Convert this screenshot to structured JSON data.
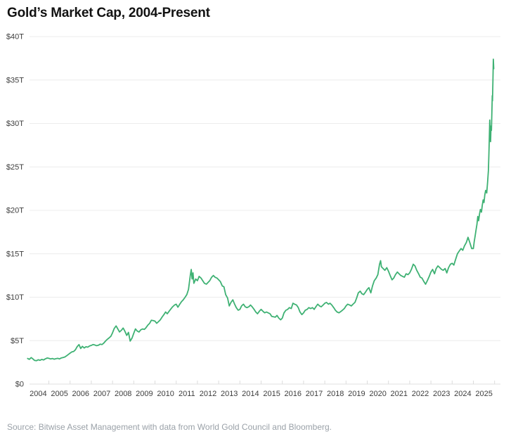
{
  "header": {
    "title": "Gold’s Market Cap, 2004-Present"
  },
  "footer": {
    "source": "Source: Bitwise Asset Management with data from World Gold Council and Bloomberg."
  },
  "chart_data": {
    "type": "line",
    "title": "Gold’s Market Cap, 2004-Present",
    "xlabel": "",
    "ylabel": "",
    "xlim": [
      2004,
      2026
    ],
    "ylim": [
      0,
      40
    ],
    "grid": "horizontal",
    "legend": "none",
    "line_color": "#3eb173",
    "grid_color": "#ececec",
    "axis_color": "#e2e2e2",
    "label_color": "#3d3d3d",
    "y_ticks": [
      0,
      5,
      10,
      15,
      20,
      25,
      30,
      35,
      40
    ],
    "y_tick_labels": [
      "$0",
      "$5T",
      "$10T",
      "$15T",
      "$20T",
      "$25T",
      "$30T",
      "$35T",
      "$40T"
    ],
    "x_tick_labels": [
      "2004",
      "2005",
      "2006",
      "2007",
      "2008",
      "2009",
      "2010",
      "2011",
      "2012",
      "2013",
      "2014",
      "2015",
      "2016",
      "2017",
      "2018",
      "2019",
      "2020",
      "2021",
      "2022",
      "2023",
      "2024",
      "2025"
    ],
    "series": [
      {
        "name": "Gold market cap (trillions USD)",
        "points": [
          [
            2004.0,
            2.95
          ],
          [
            2004.08,
            2.85
          ],
          [
            2004.17,
            3.05
          ],
          [
            2004.25,
            2.9
          ],
          [
            2004.33,
            2.72
          ],
          [
            2004.42,
            2.7
          ],
          [
            2004.5,
            2.8
          ],
          [
            2004.58,
            2.74
          ],
          [
            2004.67,
            2.84
          ],
          [
            2004.75,
            2.78
          ],
          [
            2004.83,
            2.9
          ],
          [
            2004.92,
            3.0
          ],
          [
            2005.0,
            2.96
          ],
          [
            2005.08,
            2.9
          ],
          [
            2005.17,
            2.95
          ],
          [
            2005.25,
            2.87
          ],
          [
            2005.33,
            2.92
          ],
          [
            2005.42,
            2.96
          ],
          [
            2005.5,
            2.9
          ],
          [
            2005.58,
            3.0
          ],
          [
            2005.67,
            3.06
          ],
          [
            2005.75,
            3.12
          ],
          [
            2005.83,
            3.25
          ],
          [
            2005.92,
            3.42
          ],
          [
            2006.0,
            3.56
          ],
          [
            2006.08,
            3.7
          ],
          [
            2006.17,
            3.76
          ],
          [
            2006.25,
            3.95
          ],
          [
            2006.33,
            4.3
          ],
          [
            2006.42,
            4.55
          ],
          [
            2006.5,
            4.1
          ],
          [
            2006.58,
            4.35
          ],
          [
            2006.67,
            4.15
          ],
          [
            2006.75,
            4.3
          ],
          [
            2006.83,
            4.25
          ],
          [
            2006.92,
            4.4
          ],
          [
            2007.0,
            4.45
          ],
          [
            2007.08,
            4.55
          ],
          [
            2007.17,
            4.5
          ],
          [
            2007.25,
            4.42
          ],
          [
            2007.33,
            4.47
          ],
          [
            2007.42,
            4.6
          ],
          [
            2007.5,
            4.55
          ],
          [
            2007.58,
            4.7
          ],
          [
            2007.67,
            4.95
          ],
          [
            2007.75,
            5.15
          ],
          [
            2007.83,
            5.3
          ],
          [
            2007.92,
            5.5
          ],
          [
            2008.0,
            5.9
          ],
          [
            2008.08,
            6.4
          ],
          [
            2008.17,
            6.7
          ],
          [
            2008.25,
            6.35
          ],
          [
            2008.33,
            6.0
          ],
          [
            2008.42,
            6.2
          ],
          [
            2008.5,
            6.45
          ],
          [
            2008.58,
            6.1
          ],
          [
            2008.67,
            5.6
          ],
          [
            2008.75,
            5.95
          ],
          [
            2008.83,
            4.95
          ],
          [
            2008.92,
            5.3
          ],
          [
            2009.0,
            5.85
          ],
          [
            2009.08,
            6.35
          ],
          [
            2009.17,
            6.1
          ],
          [
            2009.25,
            6.0
          ],
          [
            2009.33,
            6.25
          ],
          [
            2009.42,
            6.35
          ],
          [
            2009.5,
            6.3
          ],
          [
            2009.58,
            6.5
          ],
          [
            2009.67,
            6.8
          ],
          [
            2009.75,
            7.0
          ],
          [
            2009.83,
            7.35
          ],
          [
            2009.92,
            7.3
          ],
          [
            2010.0,
            7.25
          ],
          [
            2010.08,
            7.0
          ],
          [
            2010.17,
            7.2
          ],
          [
            2010.25,
            7.4
          ],
          [
            2010.33,
            7.7
          ],
          [
            2010.42,
            8.0
          ],
          [
            2010.5,
            8.3
          ],
          [
            2010.58,
            8.1
          ],
          [
            2010.67,
            8.4
          ],
          [
            2010.75,
            8.65
          ],
          [
            2010.83,
            8.9
          ],
          [
            2010.92,
            9.1
          ],
          [
            2011.0,
            9.2
          ],
          [
            2011.08,
            8.85
          ],
          [
            2011.17,
            9.2
          ],
          [
            2011.25,
            9.5
          ],
          [
            2011.33,
            9.7
          ],
          [
            2011.42,
            10.0
          ],
          [
            2011.5,
            10.3
          ],
          [
            2011.58,
            10.9
          ],
          [
            2011.67,
            12.6
          ],
          [
            2011.71,
            13.2
          ],
          [
            2011.75,
            12.1
          ],
          [
            2011.79,
            12.8
          ],
          [
            2011.83,
            11.6
          ],
          [
            2011.92,
            12.1
          ],
          [
            2012.0,
            11.9
          ],
          [
            2012.08,
            12.4
          ],
          [
            2012.17,
            12.2
          ],
          [
            2012.25,
            11.9
          ],
          [
            2012.33,
            11.6
          ],
          [
            2012.42,
            11.5
          ],
          [
            2012.5,
            11.7
          ],
          [
            2012.58,
            11.9
          ],
          [
            2012.67,
            12.3
          ],
          [
            2012.75,
            12.5
          ],
          [
            2012.83,
            12.3
          ],
          [
            2012.92,
            12.2
          ],
          [
            2013.0,
            12.0
          ],
          [
            2013.08,
            11.8
          ],
          [
            2013.17,
            11.3
          ],
          [
            2013.25,
            11.2
          ],
          [
            2013.33,
            10.3
          ],
          [
            2013.42,
            9.9
          ],
          [
            2013.5,
            9.0
          ],
          [
            2013.58,
            9.4
          ],
          [
            2013.67,
            9.7
          ],
          [
            2013.75,
            9.2
          ],
          [
            2013.83,
            8.8
          ],
          [
            2013.92,
            8.5
          ],
          [
            2014.0,
            8.6
          ],
          [
            2014.08,
            9.0
          ],
          [
            2014.17,
            9.2
          ],
          [
            2014.25,
            8.9
          ],
          [
            2014.33,
            8.8
          ],
          [
            2014.42,
            8.9
          ],
          [
            2014.5,
            9.1
          ],
          [
            2014.58,
            8.9
          ],
          [
            2014.67,
            8.6
          ],
          [
            2014.75,
            8.3
          ],
          [
            2014.83,
            8.1
          ],
          [
            2014.92,
            8.4
          ],
          [
            2015.0,
            8.6
          ],
          [
            2015.08,
            8.4
          ],
          [
            2015.17,
            8.2
          ],
          [
            2015.25,
            8.3
          ],
          [
            2015.33,
            8.2
          ],
          [
            2015.42,
            8.1
          ],
          [
            2015.5,
            7.8
          ],
          [
            2015.58,
            7.75
          ],
          [
            2015.67,
            7.7
          ],
          [
            2015.75,
            7.9
          ],
          [
            2015.83,
            7.6
          ],
          [
            2015.92,
            7.4
          ],
          [
            2016.0,
            7.6
          ],
          [
            2016.08,
            8.2
          ],
          [
            2016.17,
            8.5
          ],
          [
            2016.25,
            8.6
          ],
          [
            2016.33,
            8.8
          ],
          [
            2016.42,
            8.7
          ],
          [
            2016.5,
            9.3
          ],
          [
            2016.58,
            9.2
          ],
          [
            2016.67,
            9.1
          ],
          [
            2016.75,
            8.8
          ],
          [
            2016.83,
            8.3
          ],
          [
            2016.92,
            8.0
          ],
          [
            2017.0,
            8.2
          ],
          [
            2017.08,
            8.5
          ],
          [
            2017.17,
            8.6
          ],
          [
            2017.25,
            8.8
          ],
          [
            2017.33,
            8.7
          ],
          [
            2017.42,
            8.8
          ],
          [
            2017.5,
            8.6
          ],
          [
            2017.58,
            8.9
          ],
          [
            2017.67,
            9.2
          ],
          [
            2017.75,
            9.0
          ],
          [
            2017.83,
            8.9
          ],
          [
            2017.92,
            9.1
          ],
          [
            2018.0,
            9.3
          ],
          [
            2018.08,
            9.4
          ],
          [
            2018.17,
            9.2
          ],
          [
            2018.25,
            9.3
          ],
          [
            2018.33,
            9.1
          ],
          [
            2018.42,
            8.8
          ],
          [
            2018.5,
            8.5
          ],
          [
            2018.58,
            8.3
          ],
          [
            2018.67,
            8.2
          ],
          [
            2018.75,
            8.35
          ],
          [
            2018.83,
            8.5
          ],
          [
            2018.92,
            8.7
          ],
          [
            2019.0,
            9.0
          ],
          [
            2019.08,
            9.2
          ],
          [
            2019.17,
            9.1
          ],
          [
            2019.25,
            9.0
          ],
          [
            2019.33,
            9.2
          ],
          [
            2019.42,
            9.4
          ],
          [
            2019.5,
            9.9
          ],
          [
            2019.58,
            10.5
          ],
          [
            2019.67,
            10.7
          ],
          [
            2019.75,
            10.4
          ],
          [
            2019.83,
            10.3
          ],
          [
            2019.92,
            10.6
          ],
          [
            2020.0,
            10.9
          ],
          [
            2020.08,
            11.1
          ],
          [
            2020.17,
            10.5
          ],
          [
            2020.25,
            11.3
          ],
          [
            2020.33,
            11.9
          ],
          [
            2020.42,
            12.2
          ],
          [
            2020.5,
            12.6
          ],
          [
            2020.58,
            13.8
          ],
          [
            2020.63,
            14.2
          ],
          [
            2020.67,
            13.5
          ],
          [
            2020.75,
            13.3
          ],
          [
            2020.83,
            13.1
          ],
          [
            2020.92,
            13.4
          ],
          [
            2021.0,
            13.0
          ],
          [
            2021.08,
            12.5
          ],
          [
            2021.17,
            12.0
          ],
          [
            2021.25,
            12.2
          ],
          [
            2021.33,
            12.6
          ],
          [
            2021.42,
            12.9
          ],
          [
            2021.5,
            12.7
          ],
          [
            2021.58,
            12.5
          ],
          [
            2021.67,
            12.4
          ],
          [
            2021.75,
            12.3
          ],
          [
            2021.83,
            12.7
          ],
          [
            2021.92,
            12.6
          ],
          [
            2022.0,
            12.8
          ],
          [
            2022.08,
            13.2
          ],
          [
            2022.17,
            13.8
          ],
          [
            2022.25,
            13.6
          ],
          [
            2022.33,
            13.1
          ],
          [
            2022.42,
            12.7
          ],
          [
            2022.5,
            12.3
          ],
          [
            2022.58,
            12.2
          ],
          [
            2022.67,
            11.8
          ],
          [
            2022.75,
            11.5
          ],
          [
            2022.83,
            11.9
          ],
          [
            2022.92,
            12.4
          ],
          [
            2023.0,
            12.9
          ],
          [
            2023.08,
            13.2
          ],
          [
            2023.17,
            12.7
          ],
          [
            2023.25,
            13.3
          ],
          [
            2023.33,
            13.6
          ],
          [
            2023.42,
            13.4
          ],
          [
            2023.5,
            13.2
          ],
          [
            2023.58,
            13.1
          ],
          [
            2023.67,
            13.3
          ],
          [
            2023.75,
            12.8
          ],
          [
            2023.83,
            13.4
          ],
          [
            2023.92,
            13.8
          ],
          [
            2024.0,
            13.9
          ],
          [
            2024.08,
            13.7
          ],
          [
            2024.17,
            14.4
          ],
          [
            2024.25,
            15.0
          ],
          [
            2024.33,
            15.3
          ],
          [
            2024.42,
            15.6
          ],
          [
            2024.5,
            15.4
          ],
          [
            2024.58,
            15.9
          ],
          [
            2024.67,
            16.3
          ],
          [
            2024.75,
            16.9
          ],
          [
            2024.83,
            16.3
          ],
          [
            2024.92,
            15.6
          ],
          [
            2025.0,
            15.6
          ],
          [
            2025.04,
            16.4
          ],
          [
            2025.08,
            17.0
          ],
          [
            2025.13,
            17.8
          ],
          [
            2025.17,
            18.4
          ],
          [
            2025.21,
            19.3
          ],
          [
            2025.25,
            18.8
          ],
          [
            2025.29,
            19.6
          ],
          [
            2025.33,
            20.1
          ],
          [
            2025.38,
            19.8
          ],
          [
            2025.42,
            20.6
          ],
          [
            2025.46,
            21.2
          ],
          [
            2025.5,
            20.9
          ],
          [
            2025.54,
            21.8
          ],
          [
            2025.58,
            22.3
          ],
          [
            2025.63,
            22.0
          ],
          [
            2025.67,
            23.2
          ],
          [
            2025.71,
            24.6
          ],
          [
            2025.73,
            26.2
          ],
          [
            2025.75,
            28.0
          ],
          [
            2025.77,
            30.4
          ],
          [
            2025.79,
            28.9
          ],
          [
            2025.81,
            27.9
          ],
          [
            2025.83,
            29.7
          ],
          [
            2025.85,
            29.2
          ],
          [
            2025.87,
            31.2
          ],
          [
            2025.89,
            33.2
          ],
          [
            2025.9,
            32.6
          ],
          [
            2025.92,
            34.8
          ],
          [
            2025.94,
            37.4
          ],
          [
            2025.96,
            36.3
          ]
        ]
      }
    ]
  }
}
